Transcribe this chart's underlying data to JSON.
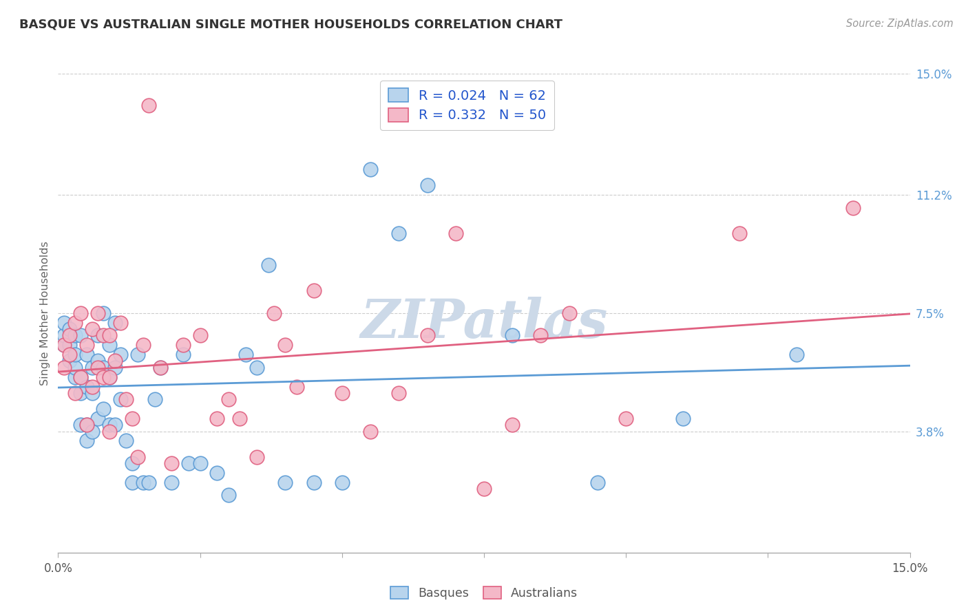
{
  "title": "BASQUE VS AUSTRALIAN SINGLE MOTHER HOUSEHOLDS CORRELATION CHART",
  "source": "Source: ZipAtlas.com",
  "ylabel": "Single Mother Households",
  "xlim": [
    0,
    0.15
  ],
  "ylim": [
    0,
    0.15
  ],
  "ytick_labels": [
    "3.8%",
    "7.5%",
    "11.2%",
    "15.0%"
  ],
  "ytick_vals": [
    0.038,
    0.075,
    0.112,
    0.15
  ],
  "basque_R": 0.024,
  "basque_N": 62,
  "australian_R": 0.332,
  "australian_N": 50,
  "basque_color": "#b8d4ed",
  "basque_edge_color": "#5b9bd5",
  "australian_color": "#f4b8c8",
  "australian_edge_color": "#e06080",
  "basque_line_color": "#5b9bd5",
  "australian_line_color": "#e06080",
  "watermark": "ZIPatlas",
  "watermark_color": "#ccd9e8",
  "legend_R_color": "#2255cc",
  "basque_x": [
    0.001,
    0.001,
    0.001,
    0.002,
    0.002,
    0.002,
    0.003,
    0.003,
    0.003,
    0.003,
    0.004,
    0.004,
    0.004,
    0.004,
    0.005,
    0.005,
    0.005,
    0.005,
    0.006,
    0.006,
    0.006,
    0.007,
    0.007,
    0.007,
    0.008,
    0.008,
    0.008,
    0.009,
    0.009,
    0.009,
    0.01,
    0.01,
    0.01,
    0.011,
    0.011,
    0.012,
    0.013,
    0.013,
    0.014,
    0.015,
    0.016,
    0.017,
    0.018,
    0.02,
    0.022,
    0.023,
    0.025,
    0.028,
    0.03,
    0.033,
    0.035,
    0.037,
    0.04,
    0.045,
    0.05,
    0.055,
    0.06,
    0.065,
    0.08,
    0.095,
    0.11,
    0.13
  ],
  "basque_y": [
    0.065,
    0.068,
    0.072,
    0.06,
    0.065,
    0.07,
    0.055,
    0.058,
    0.062,
    0.068,
    0.04,
    0.05,
    0.055,
    0.068,
    0.035,
    0.04,
    0.052,
    0.062,
    0.038,
    0.05,
    0.058,
    0.042,
    0.06,
    0.068,
    0.045,
    0.058,
    0.075,
    0.04,
    0.055,
    0.065,
    0.04,
    0.058,
    0.072,
    0.048,
    0.062,
    0.035,
    0.022,
    0.028,
    0.062,
    0.022,
    0.022,
    0.048,
    0.058,
    0.022,
    0.062,
    0.028,
    0.028,
    0.025,
    0.018,
    0.062,
    0.058,
    0.09,
    0.022,
    0.022,
    0.022,
    0.12,
    0.1,
    0.115,
    0.068,
    0.022,
    0.042,
    0.062
  ],
  "australian_x": [
    0.001,
    0.001,
    0.002,
    0.002,
    0.003,
    0.003,
    0.004,
    0.004,
    0.005,
    0.005,
    0.006,
    0.006,
    0.007,
    0.007,
    0.008,
    0.008,
    0.009,
    0.009,
    0.009,
    0.01,
    0.011,
    0.012,
    0.013,
    0.014,
    0.015,
    0.016,
    0.018,
    0.02,
    0.022,
    0.025,
    0.028,
    0.03,
    0.032,
    0.035,
    0.038,
    0.04,
    0.042,
    0.045,
    0.05,
    0.055,
    0.06,
    0.065,
    0.07,
    0.075,
    0.08,
    0.085,
    0.09,
    0.1,
    0.12,
    0.14
  ],
  "australian_y": [
    0.058,
    0.065,
    0.062,
    0.068,
    0.05,
    0.072,
    0.055,
    0.075,
    0.04,
    0.065,
    0.052,
    0.07,
    0.058,
    0.075,
    0.055,
    0.068,
    0.038,
    0.055,
    0.068,
    0.06,
    0.072,
    0.048,
    0.042,
    0.03,
    0.065,
    0.14,
    0.058,
    0.028,
    0.065,
    0.068,
    0.042,
    0.048,
    0.042,
    0.03,
    0.075,
    0.065,
    0.052,
    0.082,
    0.05,
    0.038,
    0.05,
    0.068,
    0.1,
    0.02,
    0.04,
    0.068,
    0.075,
    0.042,
    0.1,
    0.108
  ]
}
